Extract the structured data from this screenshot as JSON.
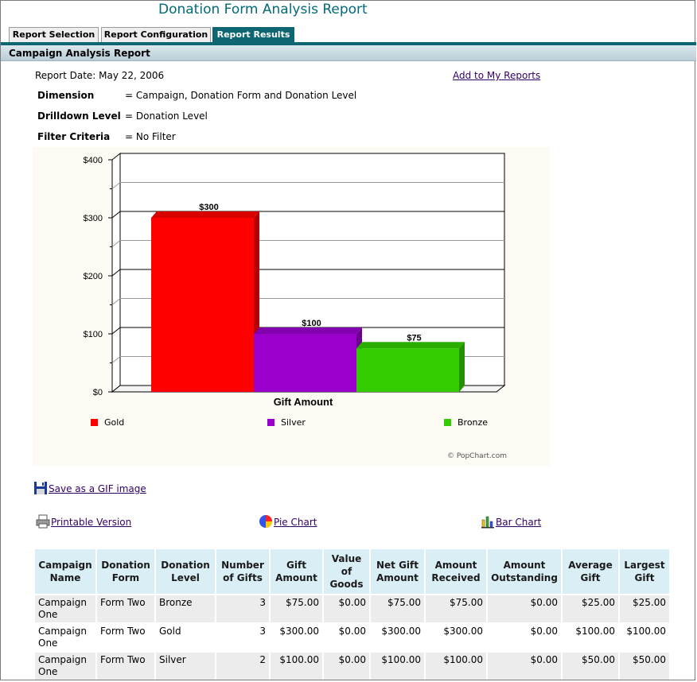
{
  "page_title": "Donation Form Analysis Report",
  "tabs": [
    {
      "label": "Report Selection",
      "active": false
    },
    {
      "label": "Report Configuration",
      "active": false
    },
    {
      "label": "Report Results",
      "active": true
    }
  ],
  "section_header": "Campaign Analysis Report",
  "report_date": "Report Date: May 22, 2006",
  "add_link": "Add to My Reports",
  "meta": [
    {
      "label": "Dimension",
      "value": "= Campaign, Donation Form and Donation Level"
    },
    {
      "label": "Drilldown Level",
      "value": "= Donation Level"
    },
    {
      "label": "Filter Criteria",
      "value": "= No Filter"
    }
  ],
  "chart_data": {
    "type": "bar",
    "xlabel": "Gift Amount",
    "ylabel": "",
    "ylim": [
      0,
      400
    ],
    "yticks": [
      "$0",
      "$100",
      "$200",
      "$300",
      "$400"
    ],
    "grid": true,
    "legend_position": "bottom",
    "series": [
      {
        "name": "Gold",
        "value": 300,
        "label": "$300",
        "color": "#ff0000"
      },
      {
        "name": "Silver",
        "value": 100,
        "label": "$100",
        "color": "#9900cc"
      },
      {
        "name": "Bronze",
        "value": 75,
        "label": "$75",
        "color": "#33cc00"
      }
    ],
    "credit": "© PopChart.com"
  },
  "actions": {
    "save_gif": "Save as a GIF image",
    "printable": "Printable Version",
    "pie_chart": "Pie Chart",
    "bar_chart": "Bar Chart"
  },
  "icons": {
    "save": "floppy-disk-icon",
    "print": "printer-icon",
    "pie": "pie-chart-icon",
    "bar": "bar-chart-icon"
  },
  "table": {
    "headers": [
      "Campaign Name",
      "Donation Form",
      "Donation Level",
      "Number of Gifts",
      "Gift Amount",
      "Value of Goods",
      "Net Gift Amount",
      "Amount Received",
      "Amount Outstanding",
      "Average Gift",
      "Largest Gift"
    ],
    "rows": [
      [
        "Campaign One",
        "Form Two",
        "Bronze",
        "3",
        "$75.00",
        "$0.00",
        "$75.00",
        "$75.00",
        "$0.00",
        "$25.00",
        "$25.00"
      ],
      [
        "Campaign One",
        "Form Two",
        "Gold",
        "3",
        "$300.00",
        "$0.00",
        "$300.00",
        "$300.00",
        "$0.00",
        "$100.00",
        "$100.00"
      ],
      [
        "Campaign One",
        "Form Two",
        "Silver",
        "2",
        "$100.00",
        "$0.00",
        "$100.00",
        "$100.00",
        "$0.00",
        "$50.00",
        "$50.00"
      ]
    ]
  },
  "colors": {
    "accent": "#0d6672",
    "title": "#006a78",
    "header_cell": "#daeef6",
    "row_shade": "#ececec",
    "link": "#330066"
  }
}
